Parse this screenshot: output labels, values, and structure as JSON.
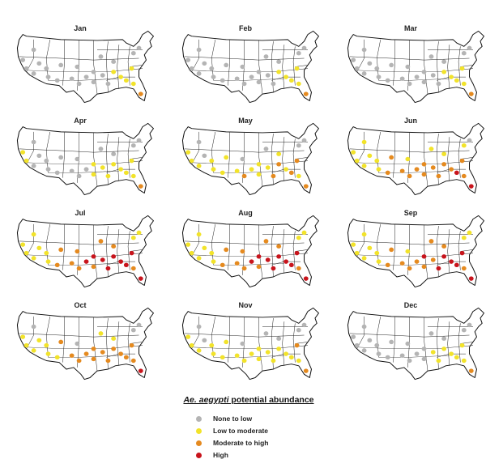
{
  "legend": {
    "title_species": "Ae. aegypti",
    "title_rest": " potential abundance",
    "items": [
      {
        "label": "None to low",
        "color": "#b4b4b4"
      },
      {
        "label": "Low to moderate",
        "color": "#f2e32a"
      },
      {
        "label": "Moderate to high",
        "color": "#e58a1f"
      },
      {
        "label": "High",
        "color": "#c8141c"
      }
    ]
  },
  "months": [
    {
      "name": "Jan",
      "sites": [
        0,
        0,
        0,
        0,
        0,
        0,
        0,
        0,
        0,
        0,
        0,
        0,
        0,
        0,
        0,
        0,
        1,
        1,
        1,
        1,
        1,
        2,
        0,
        0,
        0,
        0,
        0
      ]
    },
    {
      "name": "Feb",
      "sites": [
        0,
        0,
        0,
        0,
        0,
        0,
        0,
        0,
        0,
        0,
        0,
        0,
        0,
        0,
        0,
        0,
        1,
        1,
        1,
        1,
        1,
        2,
        0,
        0,
        0,
        0,
        0
      ]
    },
    {
      "name": "Mar",
      "sites": [
        0,
        0,
        0,
        0,
        0,
        0,
        0,
        0,
        0,
        0,
        0,
        0,
        0,
        0,
        0,
        0,
        1,
        1,
        1,
        1,
        1,
        2,
        0,
        0,
        0,
        0,
        0
      ]
    },
    {
      "name": "Apr",
      "sites": [
        1,
        1,
        0,
        0,
        0,
        0,
        0,
        0,
        0,
        0,
        0,
        0,
        1,
        1,
        1,
        1,
        1,
        1,
        1,
        1,
        1,
        2,
        0,
        0,
        0,
        0,
        0
      ]
    },
    {
      "name": "May",
      "sites": [
        1,
        1,
        1,
        0,
        0,
        1,
        1,
        1,
        1,
        1,
        2,
        1,
        1,
        1,
        1,
        2,
        2,
        1,
        2,
        2,
        1,
        2,
        0,
        0,
        1,
        0,
        0
      ]
    },
    {
      "name": "Jun",
      "sites": [
        1,
        1,
        1,
        1,
        1,
        1,
        1,
        2,
        2,
        2,
        2,
        2,
        2,
        2,
        2,
        2,
        2,
        2,
        3,
        2,
        2,
        3,
        1,
        0,
        1,
        1,
        1
      ]
    },
    {
      "name": "Jul",
      "sites": [
        1,
        1,
        1,
        1,
        1,
        1,
        1,
        2,
        2,
        2,
        2,
        3,
        3,
        2,
        3,
        3,
        3,
        3,
        3,
        3,
        2,
        3,
        1,
        1,
        2,
        2,
        2
      ]
    },
    {
      "name": "Aug",
      "sites": [
        1,
        1,
        1,
        1,
        1,
        1,
        1,
        2,
        2,
        2,
        2,
        3,
        3,
        2,
        3,
        3,
        3,
        3,
        3,
        3,
        2,
        3,
        1,
        1,
        2,
        2,
        2
      ]
    },
    {
      "name": "Sep",
      "sites": [
        1,
        1,
        1,
        1,
        1,
        1,
        1,
        2,
        2,
        2,
        2,
        2,
        3,
        2,
        2,
        3,
        3,
        3,
        3,
        3,
        2,
        3,
        1,
        1,
        2,
        2,
        1
      ]
    },
    {
      "name": "Oct",
      "sites": [
        1,
        1,
        1,
        1,
        0,
        1,
        1,
        1,
        2,
        2,
        2,
        2,
        2,
        2,
        2,
        2,
        2,
        2,
        2,
        2,
        2,
        3,
        0,
        0,
        1,
        1,
        0
      ]
    },
    {
      "name": "Nov",
      "sites": [
        1,
        1,
        1,
        0,
        0,
        1,
        1,
        1,
        1,
        1,
        1,
        1,
        1,
        1,
        1,
        1,
        1,
        1,
        1,
        2,
        1,
        2,
        0,
        0,
        0,
        0,
        0
      ]
    },
    {
      "name": "Dec",
      "sites": [
        0,
        0,
        0,
        0,
        0,
        0,
        0,
        0,
        0,
        0,
        0,
        0,
        0,
        0,
        1,
        1,
        1,
        1,
        1,
        1,
        1,
        2,
        0,
        0,
        0,
        0,
        0
      ]
    }
  ]
}
